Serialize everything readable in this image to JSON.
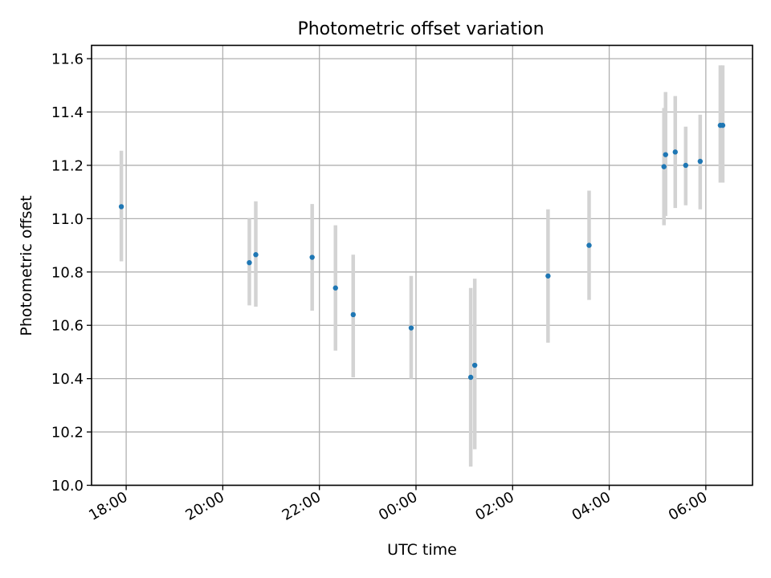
{
  "chart_data": {
    "type": "scatter",
    "title": "Photometric offset variation",
    "xlabel": "UTC time",
    "ylabel": "Photometric offset",
    "x_unit": "UTC date-time",
    "xlim": [
      "2023-01-01T17:17:00",
      "2023-01-02T06:58:00"
    ],
    "ylim": [
      10.0,
      11.65
    ],
    "x_ticks": [
      {
        "time": "2023-01-01T18:00:00",
        "label": "18:00"
      },
      {
        "time": "2023-01-01T20:00:00",
        "label": "20:00"
      },
      {
        "time": "2023-01-01T22:00:00",
        "label": "22:00"
      },
      {
        "time": "2023-01-02T00:00:00",
        "label": "00:00"
      },
      {
        "time": "2023-01-02T02:00:00",
        "label": "02:00"
      },
      {
        "time": "2023-01-02T04:00:00",
        "label": "04:00"
      },
      {
        "time": "2023-01-02T06:00:00",
        "label": "06:00"
      }
    ],
    "y_ticks": [
      {
        "value": 10.0,
        "label": "10.0"
      },
      {
        "value": 10.2,
        "label": "10.2"
      },
      {
        "value": 10.4,
        "label": "10.4"
      },
      {
        "value": 10.6,
        "label": "10.6"
      },
      {
        "value": 10.8,
        "label": "10.8"
      },
      {
        "value": 11.0,
        "label": "11.0"
      },
      {
        "value": 11.2,
        "label": "11.2"
      },
      {
        "value": 11.4,
        "label": "11.4"
      },
      {
        "value": 11.6,
        "label": "11.6"
      }
    ],
    "grid": true,
    "colors": {
      "point": "#1f77b4",
      "errorbar": "#d3d3d3",
      "grid": "#b0b0b0"
    },
    "points": [
      {
        "time": "2023-01-01T17:54:00",
        "value": 11.045,
        "err_low": 10.84,
        "err_high": 11.255
      },
      {
        "time": "2023-01-01T20:33:00",
        "value": 10.835,
        "err_low": 10.675,
        "err_high": 11.0
      },
      {
        "time": "2023-01-01T20:41:00",
        "value": 10.865,
        "err_low": 10.67,
        "err_high": 11.065
      },
      {
        "time": "2023-01-01T21:51:00",
        "value": 10.855,
        "err_low": 10.655,
        "err_high": 11.055
      },
      {
        "time": "2023-01-01T22:20:00",
        "value": 10.74,
        "err_low": 10.505,
        "err_high": 10.975
      },
      {
        "time": "2023-01-01T22:42:00",
        "value": 10.64,
        "err_low": 10.405,
        "err_high": 10.865
      },
      {
        "time": "2023-01-01T23:54:00",
        "value": 10.59,
        "err_low": 10.4,
        "err_high": 10.785
      },
      {
        "time": "2023-01-02T01:08:00",
        "value": 10.405,
        "err_low": 10.07,
        "err_high": 10.74
      },
      {
        "time": "2023-01-02T01:13:00",
        "value": 10.45,
        "err_low": 10.135,
        "err_high": 10.775
      },
      {
        "time": "2023-01-02T02:44:00",
        "value": 10.785,
        "err_low": 10.535,
        "err_high": 11.035
      },
      {
        "time": "2023-01-02T03:35:00",
        "value": 10.9,
        "err_low": 10.695,
        "err_high": 11.105
      },
      {
        "time": "2023-01-02T05:08:00",
        "value": 11.195,
        "err_low": 10.975,
        "err_high": 11.415
      },
      {
        "time": "2023-01-02T05:10:00",
        "value": 11.24,
        "err_low": 11.01,
        "err_high": 11.475
      },
      {
        "time": "2023-01-02T05:22:00",
        "value": 11.25,
        "err_low": 11.04,
        "err_high": 11.46
      },
      {
        "time": "2023-01-02T05:35:00",
        "value": 11.2,
        "err_low": 11.05,
        "err_high": 11.345
      },
      {
        "time": "2023-01-02T05:53:00",
        "value": 11.215,
        "err_low": 11.035,
        "err_high": 11.39
      },
      {
        "time": "2023-01-02T06:18:00",
        "value": 11.35,
        "err_low": 11.135,
        "err_high": 11.575
      },
      {
        "time": "2023-01-02T06:21:00",
        "value": 11.35,
        "err_low": 11.135,
        "err_high": 11.575
      }
    ]
  }
}
